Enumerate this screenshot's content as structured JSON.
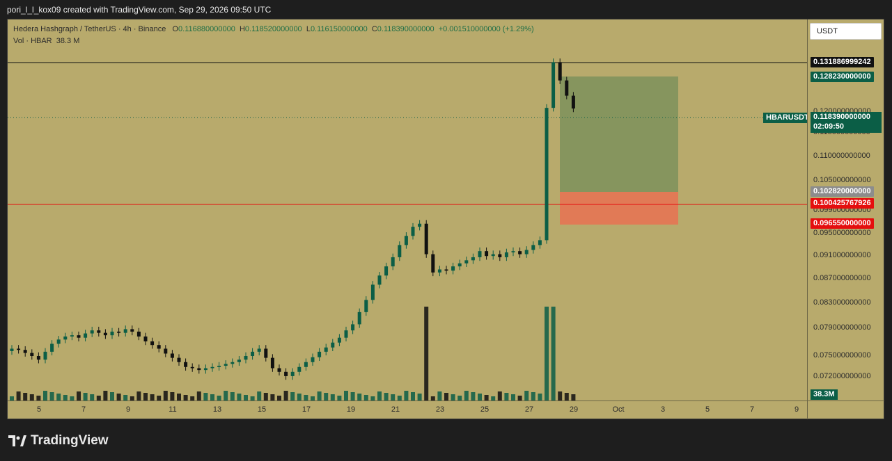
{
  "caption": "pori_l_l_kox09 created with TradingView.com, Sep 29, 2026 09:50 UTC",
  "legend": {
    "symbol": "Hedera Hashgraph / TetherUS · 4h · Binance",
    "open_label": "O",
    "open": "0.116880000000",
    "high_label": "H",
    "high": "0.118520000000",
    "low_label": "L",
    "low": "0.116150000000",
    "close_label": "C",
    "close": "0.118390000000",
    "change": "+0.001510000000 (+1.29%)",
    "vol_label": "Vol · HBAR",
    "vol_value": "38.3 M"
  },
  "currency_button": "USDT",
  "price_ticks": [
    "0.120000000000",
    "0.115000000000",
    "0.110000000000",
    "0.105000000000",
    "0.099000000000",
    "0.095000000000",
    "0.091000000000",
    "0.087000000000",
    "0.083000000000",
    "0.079000000000",
    "0.075000000000",
    "0.072000000000"
  ],
  "price_tags": {
    "crosshair": "0.131886999242",
    "target": "0.128230000000",
    "current": "0.118390000000",
    "countdown": "02:09:50",
    "entry": "0.102820000000",
    "line": "0.100425767926",
    "stop": "0.096550000000"
  },
  "symbol_tag": "HBARUSDT",
  "volume_tag": "38.3M",
  "dates": [
    "5",
    "7",
    "9",
    "11",
    "13",
    "15",
    "17",
    "19",
    "21",
    "23",
    "25",
    "27",
    "29",
    "Oct",
    "3",
    "5",
    "7",
    "9"
  ],
  "brand": "TradingView",
  "colors": {
    "up": "#0b5e46",
    "down": "#111111",
    "background": "#b8aa6c",
    "line": "#e50e0e"
  },
  "chart_data": {
    "type": "candlestick",
    "timeframe": "4h",
    "ohlc_close": [
      0.079,
      0.0788,
      0.0783,
      0.0778,
      0.0772,
      0.0785,
      0.0798,
      0.0805,
      0.081,
      0.0812,
      0.0808,
      0.0815,
      0.082,
      0.0816,
      0.0812,
      0.0818,
      0.0816,
      0.0822,
      0.0818,
      0.081,
      0.0802,
      0.0796,
      0.079,
      0.0782,
      0.0775,
      0.0768,
      0.076,
      0.0758,
      0.0755,
      0.0758,
      0.076,
      0.0762,
      0.0765,
      0.0768,
      0.0772,
      0.0778,
      0.0785,
      0.079,
      0.0775,
      0.0758,
      0.0752,
      0.0745,
      0.0752,
      0.076,
      0.0768,
      0.0776,
      0.0785,
      0.0792,
      0.08,
      0.0808,
      0.082,
      0.083,
      0.085,
      0.087,
      0.0895,
      0.091,
      0.0925,
      0.094,
      0.096,
      0.0975,
      0.099,
      0.0995,
      0.0945,
      0.0915,
      0.092,
      0.0918,
      0.0925,
      0.093,
      0.0935,
      0.094,
      0.095,
      0.0942,
      0.0945,
      0.094,
      0.0948,
      0.095,
      0.0945,
      0.0952,
      0.096,
      0.0968,
      0.1185,
      0.126,
      0.123,
      0.1205,
      0.1184
    ],
    "volume_peak": "38.3M",
    "ylim": [
      0.0705,
      0.133
    ]
  }
}
